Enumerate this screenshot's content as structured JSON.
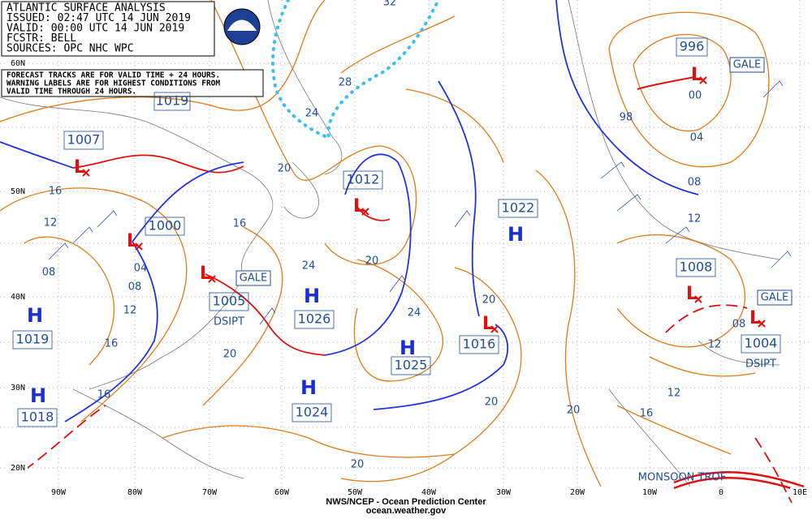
{
  "header": {
    "lines": [
      "ATLANTIC SURFACE ANALYSIS",
      "ISSUED: 02:47 UTC 14 JUN 2019",
      "VALID: 00:00 UTC 14 JUN 2019",
      "FCSTR: BELL",
      "SOURCES: OPC NHC WPC"
    ]
  },
  "note": {
    "lines": [
      "FORECAST TRACKS ARE FOR VALID TIME + 24 HOURS.",
      "WARNING LABELS ARE FOR HIGHEST CONDITIONS FROM",
      "VALID TIME THROUGH 24 HOURS."
    ]
  },
  "pressure_systems": [
    {
      "type": "L",
      "pressure": "1007"
    },
    {
      "type": "L",
      "pressure": "1000"
    },
    {
      "type": "L",
      "pressure": "1005",
      "status": "DSIPT"
    },
    {
      "type": "L",
      "pressure": "1012"
    },
    {
      "type": "H",
      "pressure": "1026"
    },
    {
      "type": "H",
      "pressure": "1019"
    },
    {
      "type": "H",
      "pressure": "1018"
    },
    {
      "type": "H",
      "pressure": "1024"
    },
    {
      "type": "H",
      "pressure": "1025"
    },
    {
      "type": "H",
      "pressure": "1022"
    },
    {
      "type": "L",
      "pressure": "1016"
    },
    {
      "type": "L",
      "pressure": "996"
    },
    {
      "type": "L",
      "pressure": "1008"
    },
    {
      "type": "L",
      "pressure": "1004",
      "status": "DSIPT"
    }
  ],
  "boxed_labels": [
    "1019"
  ],
  "isobar_labels": [
    "32",
    "28",
    "24",
    "20",
    "16",
    "12",
    "08",
    "16",
    "04",
    "08",
    "12",
    "16",
    "20",
    "24",
    "20",
    "24",
    "20",
    "20",
    "20",
    "16",
    "12",
    "12",
    "08",
    "12",
    "08",
    "04",
    "00",
    "98",
    "16",
    "20"
  ],
  "warning_labels": [
    "GALE",
    "GALE",
    "GALE"
  ],
  "front_labels": [
    "MONSOON TROF"
  ],
  "latitude_labels": [
    "60N",
    "50N",
    "40N",
    "30N",
    "20N"
  ],
  "longitude_labels": [
    "90W",
    "80W",
    "70W",
    "60W",
    "50W",
    "40W",
    "30W",
    "20W",
    "10W",
    "0",
    "10E"
  ],
  "footer": {
    "lines": [
      "NWS/NCEP - Ocean Prediction Center",
      "ocean.weather.gov"
    ]
  }
}
